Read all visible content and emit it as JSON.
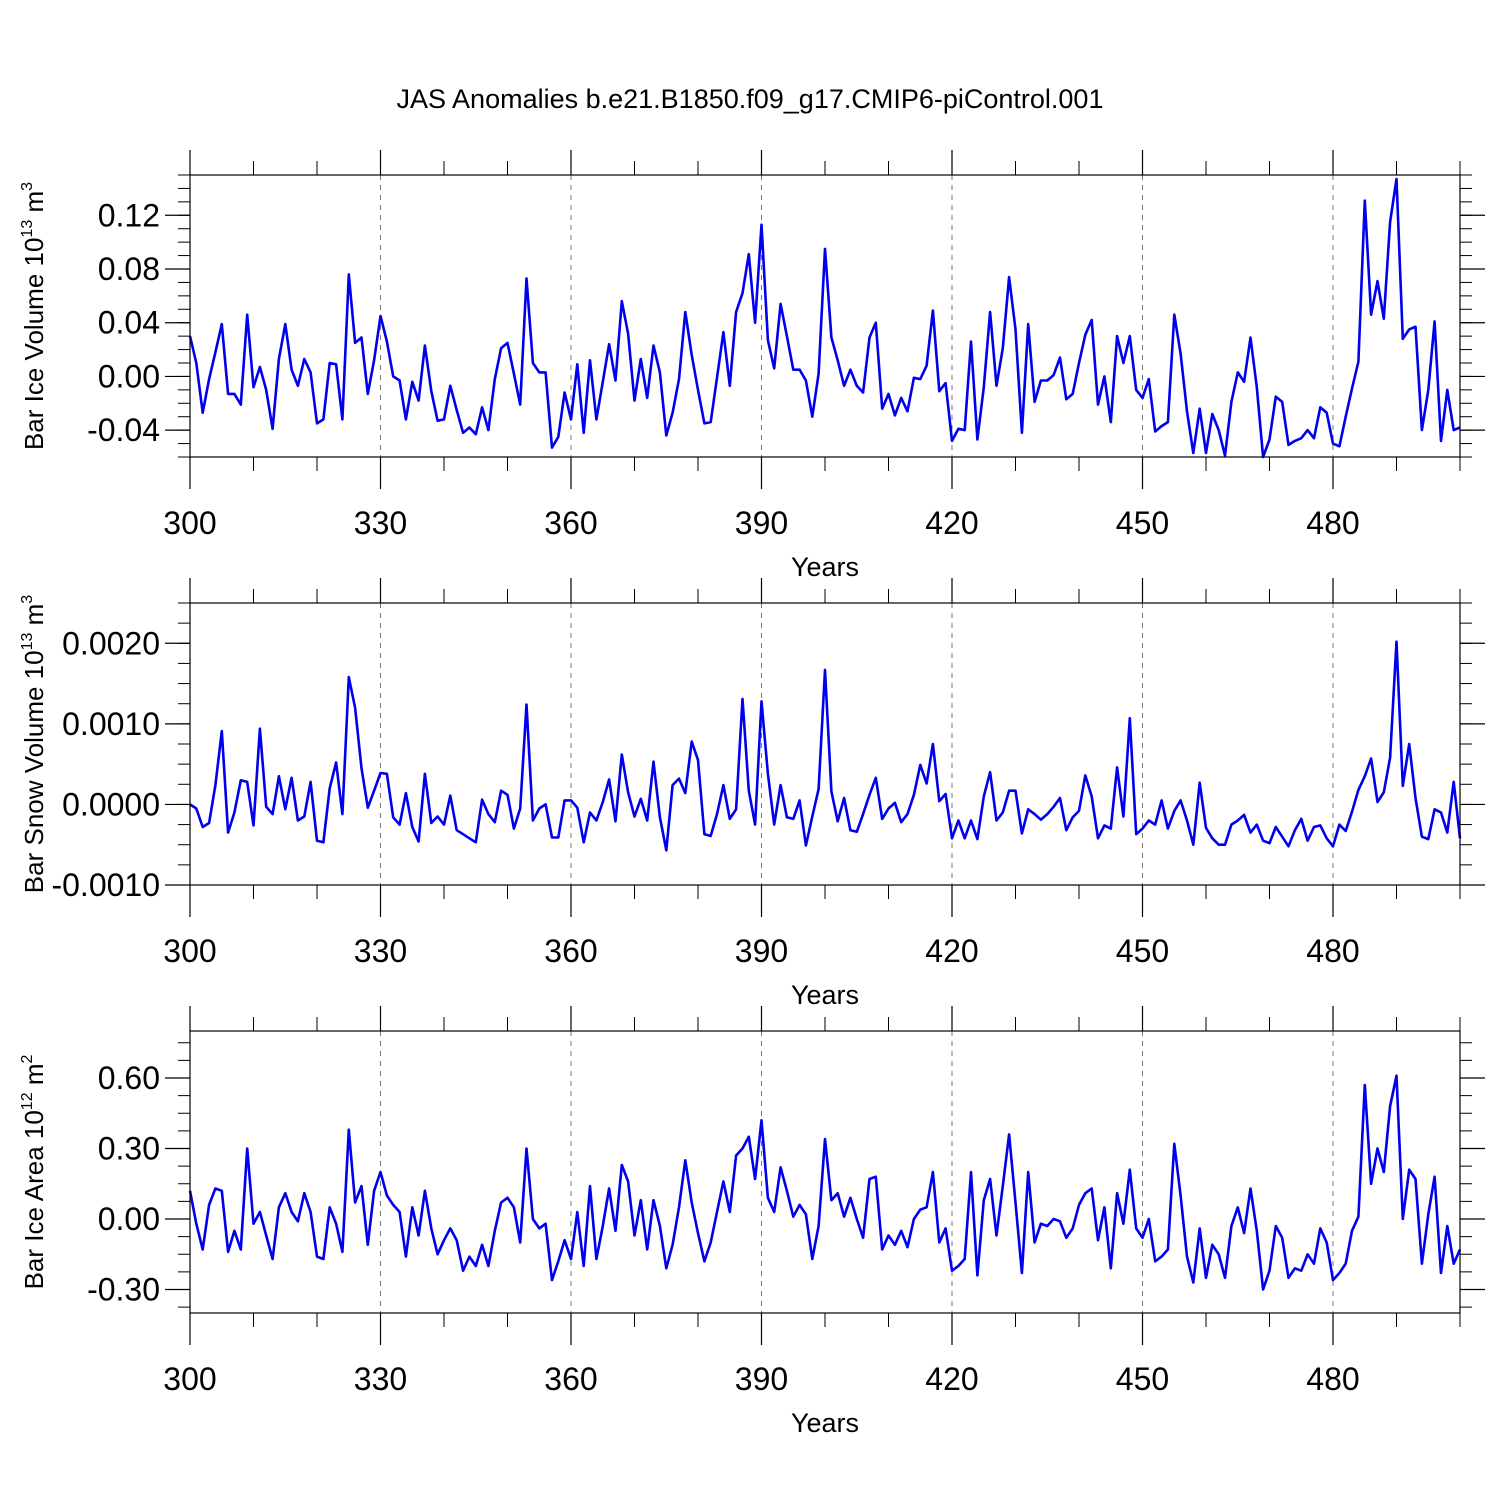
{
  "title": "JAS Anomalies b.e21.B1850.f09_g17.CMIP6-piControl.001",
  "line_color": "#0000ee",
  "chart_data": [
    {
      "type": "line",
      "ylabel_main": "Bar Ice Volume 10",
      "ylabel_sup": "13",
      "ylabel_unit": " m",
      "ylabel_unit_sup": "3",
      "xlabel": "Years",
      "xlim": [
        300,
        500
      ],
      "ylim": [
        -0.06,
        0.15
      ],
      "xticks": [
        300,
        330,
        360,
        390,
        420,
        450,
        480
      ],
      "xtick_labels": [
        "300",
        "330",
        "360",
        "390",
        "420",
        "450",
        "480"
      ],
      "yticks": [
        -0.04,
        0.0,
        0.04,
        0.08,
        0.12
      ],
      "ytick_labels": [
        "-0.04",
        "0.00",
        "0.04",
        "0.08",
        "0.12"
      ],
      "x_start": 300,
      "values": [
        0.03,
        0.01,
        -0.027,
        -0.002,
        0.018,
        0.039,
        -0.013,
        -0.013,
        -0.021,
        0.046,
        -0.008,
        0.007,
        -0.01,
        -0.039,
        0.013,
        0.039,
        0.005,
        -0.007,
        0.013,
        0.003,
        -0.035,
        -0.032,
        0.01,
        0.009,
        -0.032,
        0.076,
        0.025,
        0.029,
        -0.013,
        0.012,
        0.045,
        0.026,
        0.0,
        -0.003,
        -0.032,
        -0.004,
        -0.018,
        0.023,
        -0.011,
        -0.033,
        -0.032,
        -0.007,
        -0.025,
        -0.042,
        -0.038,
        -0.043,
        -0.023,
        -0.04,
        -0.002,
        0.021,
        0.025,
        0.002,
        -0.021,
        0.073,
        0.01,
        0.003,
        0.003,
        -0.053,
        -0.045,
        -0.012,
        -0.032,
        0.009,
        -0.042,
        0.012,
        -0.032,
        -0.004,
        0.024,
        -0.003,
        0.056,
        0.032,
        -0.018,
        0.013,
        -0.016,
        0.023,
        0.003,
        -0.044,
        -0.027,
        -0.002,
        0.048,
        0.016,
        -0.01,
        -0.035,
        -0.034,
        -0.001,
        0.033,
        -0.007,
        0.048,
        0.062,
        0.091,
        0.04,
        0.113,
        0.027,
        0.006,
        0.054,
        0.03,
        0.005,
        0.005,
        -0.003,
        -0.03,
        0.002,
        0.095,
        0.029,
        0.012,
        -0.007,
        0.005,
        -0.007,
        -0.012,
        0.029,
        0.04,
        -0.024,
        -0.013,
        -0.029,
        -0.016,
        -0.026,
        -0.001,
        -0.002,
        0.008,
        0.049,
        -0.011,
        -0.005,
        -0.048,
        -0.039,
        -0.04,
        0.026,
        -0.047,
        -0.008,
        0.048,
        -0.007,
        0.021,
        0.074,
        0.035,
        -0.042,
        0.039,
        -0.019,
        -0.003,
        -0.003,
        0.001,
        0.014,
        -0.017,
        -0.013,
        0.01,
        0.031,
        0.042,
        -0.021,
        0.0,
        -0.034,
        0.03,
        0.01,
        0.03,
        -0.01,
        -0.016,
        -0.002,
        -0.041,
        -0.037,
        -0.034,
        0.046,
        0.017,
        -0.026,
        -0.057,
        -0.024,
        -0.057,
        -0.028,
        -0.04,
        -0.059,
        -0.019,
        0.003,
        -0.004,
        0.029,
        -0.008,
        -0.06,
        -0.047,
        -0.015,
        -0.019,
        -0.051,
        -0.048,
        -0.046,
        -0.04,
        -0.046,
        -0.023,
        -0.027,
        -0.05,
        -0.052,
        -0.03,
        -0.009,
        0.011,
        0.131,
        0.046,
        0.071,
        0.043,
        0.115,
        0.147,
        0.028,
        0.035,
        0.037,
        -0.04,
        -0.01,
        0.041,
        -0.048,
        -0.01,
        -0.04,
        -0.038
      ]
    },
    {
      "type": "line",
      "ylabel_main": "Bar Snow Volume 10",
      "ylabel_sup": "13",
      "ylabel_unit": " m",
      "ylabel_unit_sup": "3",
      "xlabel": "Years",
      "xlim": [
        300,
        500
      ],
      "ylim": [
        -0.001,
        0.0025
      ],
      "xticks": [
        300,
        330,
        360,
        390,
        420,
        450,
        480
      ],
      "xtick_labels": [
        "300",
        "330",
        "360",
        "390",
        "420",
        "450",
        "480"
      ],
      "yticks": [
        -0.001,
        0.0,
        0.001,
        0.002
      ],
      "ytick_labels": [
        "-0.0010",
        "0.0000",
        "0.0010",
        "0.0020"
      ],
      "x_start": 300,
      "values": [
        0.0,
        -5e-05,
        -0.00028,
        -0.00023,
        0.00024,
        0.00091,
        -0.00035,
        -0.0001,
        0.0003,
        0.00028,
        -0.00026,
        0.00094,
        -3e-05,
        -0.00012,
        0.00035,
        -6e-05,
        0.00033,
        -0.0002,
        -0.00015,
        0.00028,
        -0.00045,
        -0.00047,
        0.0002,
        0.00052,
        -0.00012,
        0.00158,
        0.0012,
        0.00045,
        -4e-05,
        0.00017,
        0.00039,
        0.00038,
        -0.00016,
        -0.00025,
        0.00014,
        -0.00028,
        -0.00046,
        0.00038,
        -0.00023,
        -0.00015,
        -0.00025,
        0.00011,
        -0.00032,
        -0.00037,
        -0.00042,
        -0.00047,
        6e-05,
        -0.00012,
        -0.00022,
        0.00017,
        0.00012,
        -0.0003,
        -5e-05,
        0.00124,
        -0.0002,
        -5e-05,
        0.0,
        -0.00041,
        -0.00041,
        5e-05,
        5e-05,
        -4e-05,
        -0.00047,
        -0.0001,
        -0.0002,
        3e-05,
        0.00031,
        -0.00021,
        0.00062,
        0.00015,
        -0.00015,
        7e-05,
        -0.0002,
        0.00053,
        -0.00016,
        -0.00057,
        0.00024,
        0.00032,
        0.00014,
        0.00078,
        0.00055,
        -0.00037,
        -0.00039,
        -0.00012,
        0.00024,
        -0.00018,
        -6e-05,
        0.00131,
        0.00017,
        -0.00025,
        0.00128,
        0.00038,
        -0.00025,
        0.00024,
        -0.00016,
        -0.00018,
        5e-05,
        -0.00051,
        -0.00015,
        0.00019,
        0.00167,
        0.00016,
        -0.00021,
        8e-05,
        -0.00032,
        -0.00034,
        -0.00012,
        0.00012,
        0.00033,
        -0.00018,
        -5e-05,
        2e-05,
        -0.00022,
        -0.00012,
        0.00012,
        0.00049,
        0.00026,
        0.00075,
        4e-05,
        0.00013,
        -0.00042,
        -0.0002,
        -0.00042,
        -0.0002,
        -0.00043,
        0.0001,
        0.0004,
        -0.0002,
        -0.0001,
        0.00017,
        0.00017,
        -0.00036,
        -6e-05,
        -0.00012,
        -0.00019,
        -0.00012,
        -3e-05,
        8e-05,
        -0.00032,
        -0.00016,
        -8e-05,
        0.00036,
        0.0001,
        -0.00042,
        -0.00026,
        -0.0003,
        0.00046,
        -0.00015,
        0.00107,
        -0.00037,
        -0.0003,
        -0.0002,
        -0.00025,
        5e-05,
        -0.0003,
        -8e-05,
        5e-05,
        -0.0002,
        -0.0005,
        0.00027,
        -0.00029,
        -0.00042,
        -0.0005,
        -0.0005,
        -0.00025,
        -0.0002,
        -0.00013,
        -0.00035,
        -0.00025,
        -0.00045,
        -0.00048,
        -0.00028,
        -0.0004,
        -0.00052,
        -0.00032,
        -0.00018,
        -0.00045,
        -0.00028,
        -0.00026,
        -0.00042,
        -0.00052,
        -0.00025,
        -0.00033,
        -9e-05,
        0.00018,
        0.00035,
        0.00057,
        3e-05,
        0.00015,
        0.00058,
        0.00202,
        0.00023,
        0.00075,
        8e-05,
        -0.0004,
        -0.00043,
        -6e-05,
        -0.0001,
        -0.00035,
        0.00028,
        -0.00042
      ]
    },
    {
      "type": "line",
      "ylabel_main": "Bar Ice Area 10",
      "ylabel_sup": "12",
      "ylabel_unit": " m",
      "ylabel_unit_sup": "2",
      "xlabel": "Years",
      "xlim": [
        300,
        500
      ],
      "ylim": [
        -0.4,
        0.8
      ],
      "xticks": [
        300,
        330,
        360,
        390,
        420,
        450,
        480
      ],
      "xtick_labels": [
        "300",
        "330",
        "360",
        "390",
        "420",
        "450",
        "480"
      ],
      "yticks": [
        -0.3,
        0.0,
        0.3,
        0.6
      ],
      "ytick_labels": [
        "-0.30",
        "0.00",
        "0.30",
        "0.60"
      ],
      "x_start": 300,
      "values": [
        0.12,
        -0.02,
        -0.13,
        0.06,
        0.13,
        0.12,
        -0.14,
        -0.05,
        -0.13,
        0.3,
        -0.02,
        0.03,
        -0.07,
        -0.17,
        0.05,
        0.11,
        0.03,
        -0.01,
        0.11,
        0.03,
        -0.16,
        -0.17,
        0.05,
        -0.02,
        -0.14,
        0.38,
        0.07,
        0.14,
        -0.11,
        0.12,
        0.2,
        0.1,
        0.06,
        0.03,
        -0.16,
        0.05,
        -0.07,
        0.12,
        -0.04,
        -0.15,
        -0.09,
        -0.04,
        -0.09,
        -0.22,
        -0.16,
        -0.2,
        -0.11,
        -0.2,
        -0.05,
        0.07,
        0.09,
        0.05,
        -0.1,
        0.3,
        0.0,
        -0.04,
        -0.02,
        -0.26,
        -0.18,
        -0.09,
        -0.17,
        0.03,
        -0.2,
        0.14,
        -0.17,
        -0.03,
        0.13,
        -0.05,
        0.23,
        0.16,
        -0.07,
        0.08,
        -0.13,
        0.08,
        -0.03,
        -0.21,
        -0.11,
        0.05,
        0.25,
        0.07,
        -0.06,
        -0.18,
        -0.1,
        0.03,
        0.16,
        0.03,
        0.27,
        0.3,
        0.35,
        0.17,
        0.42,
        0.09,
        0.03,
        0.22,
        0.12,
        0.01,
        0.06,
        0.02,
        -0.17,
        -0.03,
        0.34,
        0.08,
        0.11,
        0.01,
        0.09,
        0.0,
        -0.08,
        0.17,
        0.18,
        -0.13,
        -0.07,
        -0.11,
        -0.05,
        -0.12,
        0.0,
        0.04,
        0.05,
        0.2,
        -0.1,
        -0.04,
        -0.22,
        -0.2,
        -0.17,
        0.2,
        -0.24,
        0.08,
        0.17,
        -0.07,
        0.14,
        0.36,
        0.07,
        -0.23,
        0.2,
        -0.1,
        -0.02,
        -0.03,
        0.0,
        -0.01,
        -0.08,
        -0.04,
        0.06,
        0.11,
        0.13,
        -0.09,
        0.05,
        -0.21,
        0.11,
        -0.02,
        0.21,
        -0.04,
        -0.08,
        0.0,
        -0.18,
        -0.16,
        -0.13,
        0.32,
        0.1,
        -0.16,
        -0.27,
        -0.04,
        -0.25,
        -0.11,
        -0.15,
        -0.25,
        -0.03,
        0.05,
        -0.06,
        0.13,
        -0.05,
        -0.3,
        -0.22,
        -0.03,
        -0.08,
        -0.25,
        -0.21,
        -0.22,
        -0.15,
        -0.19,
        -0.04,
        -0.1,
        -0.26,
        -0.23,
        -0.19,
        -0.05,
        0.01,
        0.57,
        0.15,
        0.3,
        0.2,
        0.48,
        0.61,
        0.0,
        0.21,
        0.17,
        -0.19,
        0.02,
        0.18,
        -0.23,
        -0.03,
        -0.19,
        -0.13
      ]
    }
  ]
}
